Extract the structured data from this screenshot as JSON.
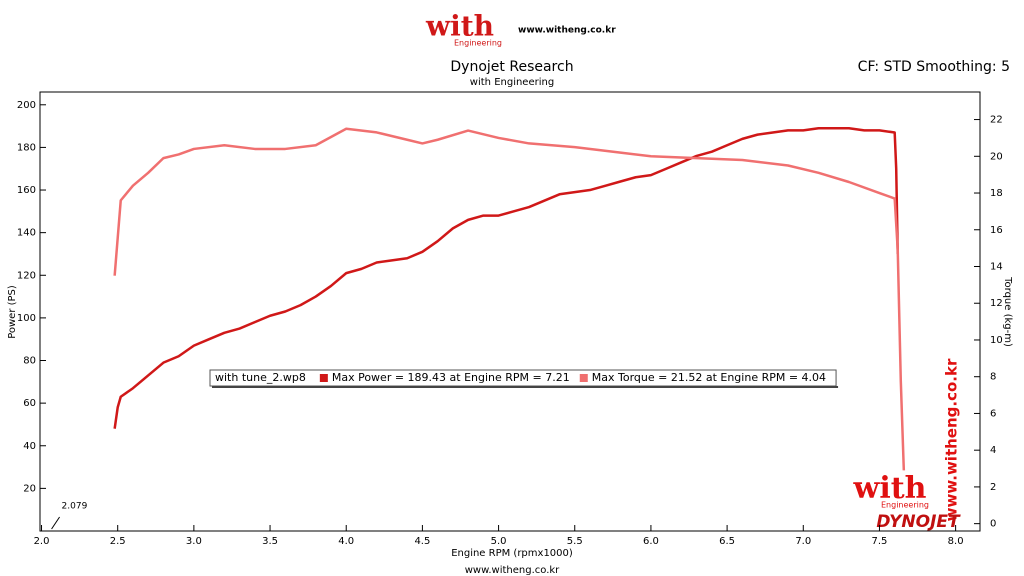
{
  "header": {
    "logo": "with",
    "logo_sub": "Engineering",
    "site": "www.witheng.co.kr",
    "settings": "CF: STD Smoothing: 5"
  },
  "watermark": {
    "logo": "with",
    "logo_sub": "Engineering",
    "site": "www.witheng.co.kr",
    "brand": "DYNOJET"
  },
  "footer": "www.witheng.co.kr",
  "chart_data": {
    "type": "line",
    "title": "Dynojet Research",
    "subtitle": "with Engineering",
    "x_label": "Engine RPM (rpmx1000)",
    "y_label": "Power (PS)",
    "y2_label": "Torque (kg-m)",
    "legend_title": "with tune_2.wp8",
    "cursor": {
      "value": 2.079,
      "label": "2.079"
    },
    "xlim": [
      1.99,
      8.16
    ],
    "ylim": [
      0,
      206
    ],
    "y2lim": [
      -0.4,
      23.5
    ],
    "xticks": [
      {
        "value": 2,
        "label": "2.0"
      },
      {
        "value": 2.5,
        "label": "2.5"
      },
      {
        "value": 3,
        "label": "3.0"
      },
      {
        "value": 3.5,
        "label": "3.5"
      },
      {
        "value": 4,
        "label": "4.0"
      },
      {
        "value": 4.5,
        "label": "4.5"
      },
      {
        "value": 5,
        "label": "5.0"
      },
      {
        "value": 5.5,
        "label": "5.5"
      },
      {
        "value": 6,
        "label": "6.0"
      },
      {
        "value": 6.5,
        "label": "6.5"
      },
      {
        "value": 7,
        "label": "7.0"
      },
      {
        "value": 7.5,
        "label": "7.5"
      },
      {
        "value": 8,
        "label": "8.0"
      }
    ],
    "yticks": [
      20,
      40,
      60,
      80,
      100,
      120,
      140,
      160,
      180,
      200
    ],
    "y2ticks": [
      0,
      2,
      4,
      6,
      8,
      10,
      12,
      14,
      16,
      18,
      20,
      22
    ],
    "grid": false,
    "series": [
      {
        "name": "Max Power = 189.43 at Engine RPM = 7.21",
        "color": "#d01818",
        "axis": "y",
        "x": [
          2.48,
          2.5,
          2.52,
          2.6,
          2.7,
          2.8,
          2.9,
          3.0,
          3.1,
          3.2,
          3.3,
          3.4,
          3.5,
          3.6,
          3.7,
          3.8,
          3.9,
          4.0,
          4.1,
          4.2,
          4.3,
          4.4,
          4.5,
          4.6,
          4.7,
          4.8,
          4.9,
          5.0,
          5.1,
          5.2,
          5.3,
          5.4,
          5.5,
          5.6,
          5.7,
          5.8,
          5.9,
          6.0,
          6.1,
          6.2,
          6.3,
          6.4,
          6.5,
          6.6,
          6.7,
          6.8,
          6.9,
          7.0,
          7.1,
          7.2,
          7.3,
          7.4,
          7.5,
          7.6,
          7.61,
          7.62
        ],
        "values": [
          48,
          58,
          63,
          67,
          73,
          79,
          82,
          87,
          90,
          93,
          95,
          98,
          101,
          103,
          106,
          110,
          115,
          121,
          123,
          126,
          127,
          128,
          131,
          136,
          142,
          146,
          148,
          148,
          150,
          152,
          155,
          158,
          159,
          160,
          162,
          164,
          166,
          167,
          170,
          173,
          176,
          178,
          181,
          184,
          186,
          187,
          188,
          188,
          189,
          189,
          189,
          188,
          188,
          187,
          170,
          130
        ]
      },
      {
        "name": "Max Torque = 21.52 at Engine RPM = 4.04",
        "color": "#f07070",
        "axis": "y2",
        "x": [
          2.48,
          2.52,
          2.6,
          2.7,
          2.8,
          2.9,
          3.0,
          3.2,
          3.4,
          3.6,
          3.8,
          4.0,
          4.2,
          4.4,
          4.5,
          4.6,
          4.8,
          5.0,
          5.2,
          5.5,
          5.8,
          6.0,
          6.3,
          6.6,
          6.9,
          7.1,
          7.3,
          7.5,
          7.6,
          7.62,
          7.64,
          7.66
        ],
        "values": [
          13.5,
          17.6,
          18.4,
          19.1,
          19.9,
          20.1,
          20.4,
          20.6,
          20.4,
          20.4,
          20.6,
          21.5,
          21.3,
          20.9,
          20.7,
          20.9,
          21.4,
          21.0,
          20.7,
          20.5,
          20.2,
          20.0,
          19.9,
          19.8,
          19.5,
          19.1,
          18.6,
          18.0,
          17.7,
          14.9,
          7.8,
          2.9
        ]
      }
    ]
  }
}
